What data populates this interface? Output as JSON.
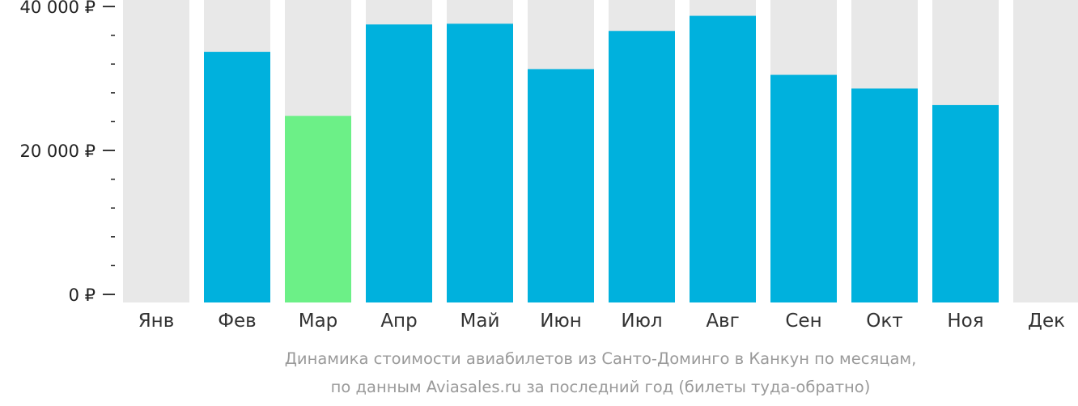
{
  "chart_data": {
    "type": "bar",
    "categories": [
      "Янв",
      "Фев",
      "Мар",
      "Апр",
      "Май",
      "Июн",
      "Июл",
      "Авг",
      "Сен",
      "Окт",
      "Ноя",
      "Дек"
    ],
    "values": [
      null,
      33700,
      24800,
      37500,
      37600,
      31300,
      36600,
      38700,
      30500,
      28600,
      26300,
      null
    ],
    "highlight_index": 2,
    "y_ticks": [
      {
        "value": 0,
        "label": "0 ₽"
      },
      {
        "value": 20000,
        "label": "20 000 ₽"
      },
      {
        "value": 40000,
        "label": "40 000 ₽"
      }
    ],
    "ylim": [
      0,
      40000
    ],
    "grid": false,
    "legend": "none",
    "colors": {
      "bar": "#00b1dd",
      "highlight": "#6cf087",
      "background_column": "#e8e8e8",
      "axis": "#222222"
    }
  },
  "caption": {
    "line1": "Динамика стоимости авиабилетов из Санто-Доминго в Канкун по месяцам,",
    "line2": "по данным Aviasales.ru за последний год (билеты туда-обратно)"
  }
}
